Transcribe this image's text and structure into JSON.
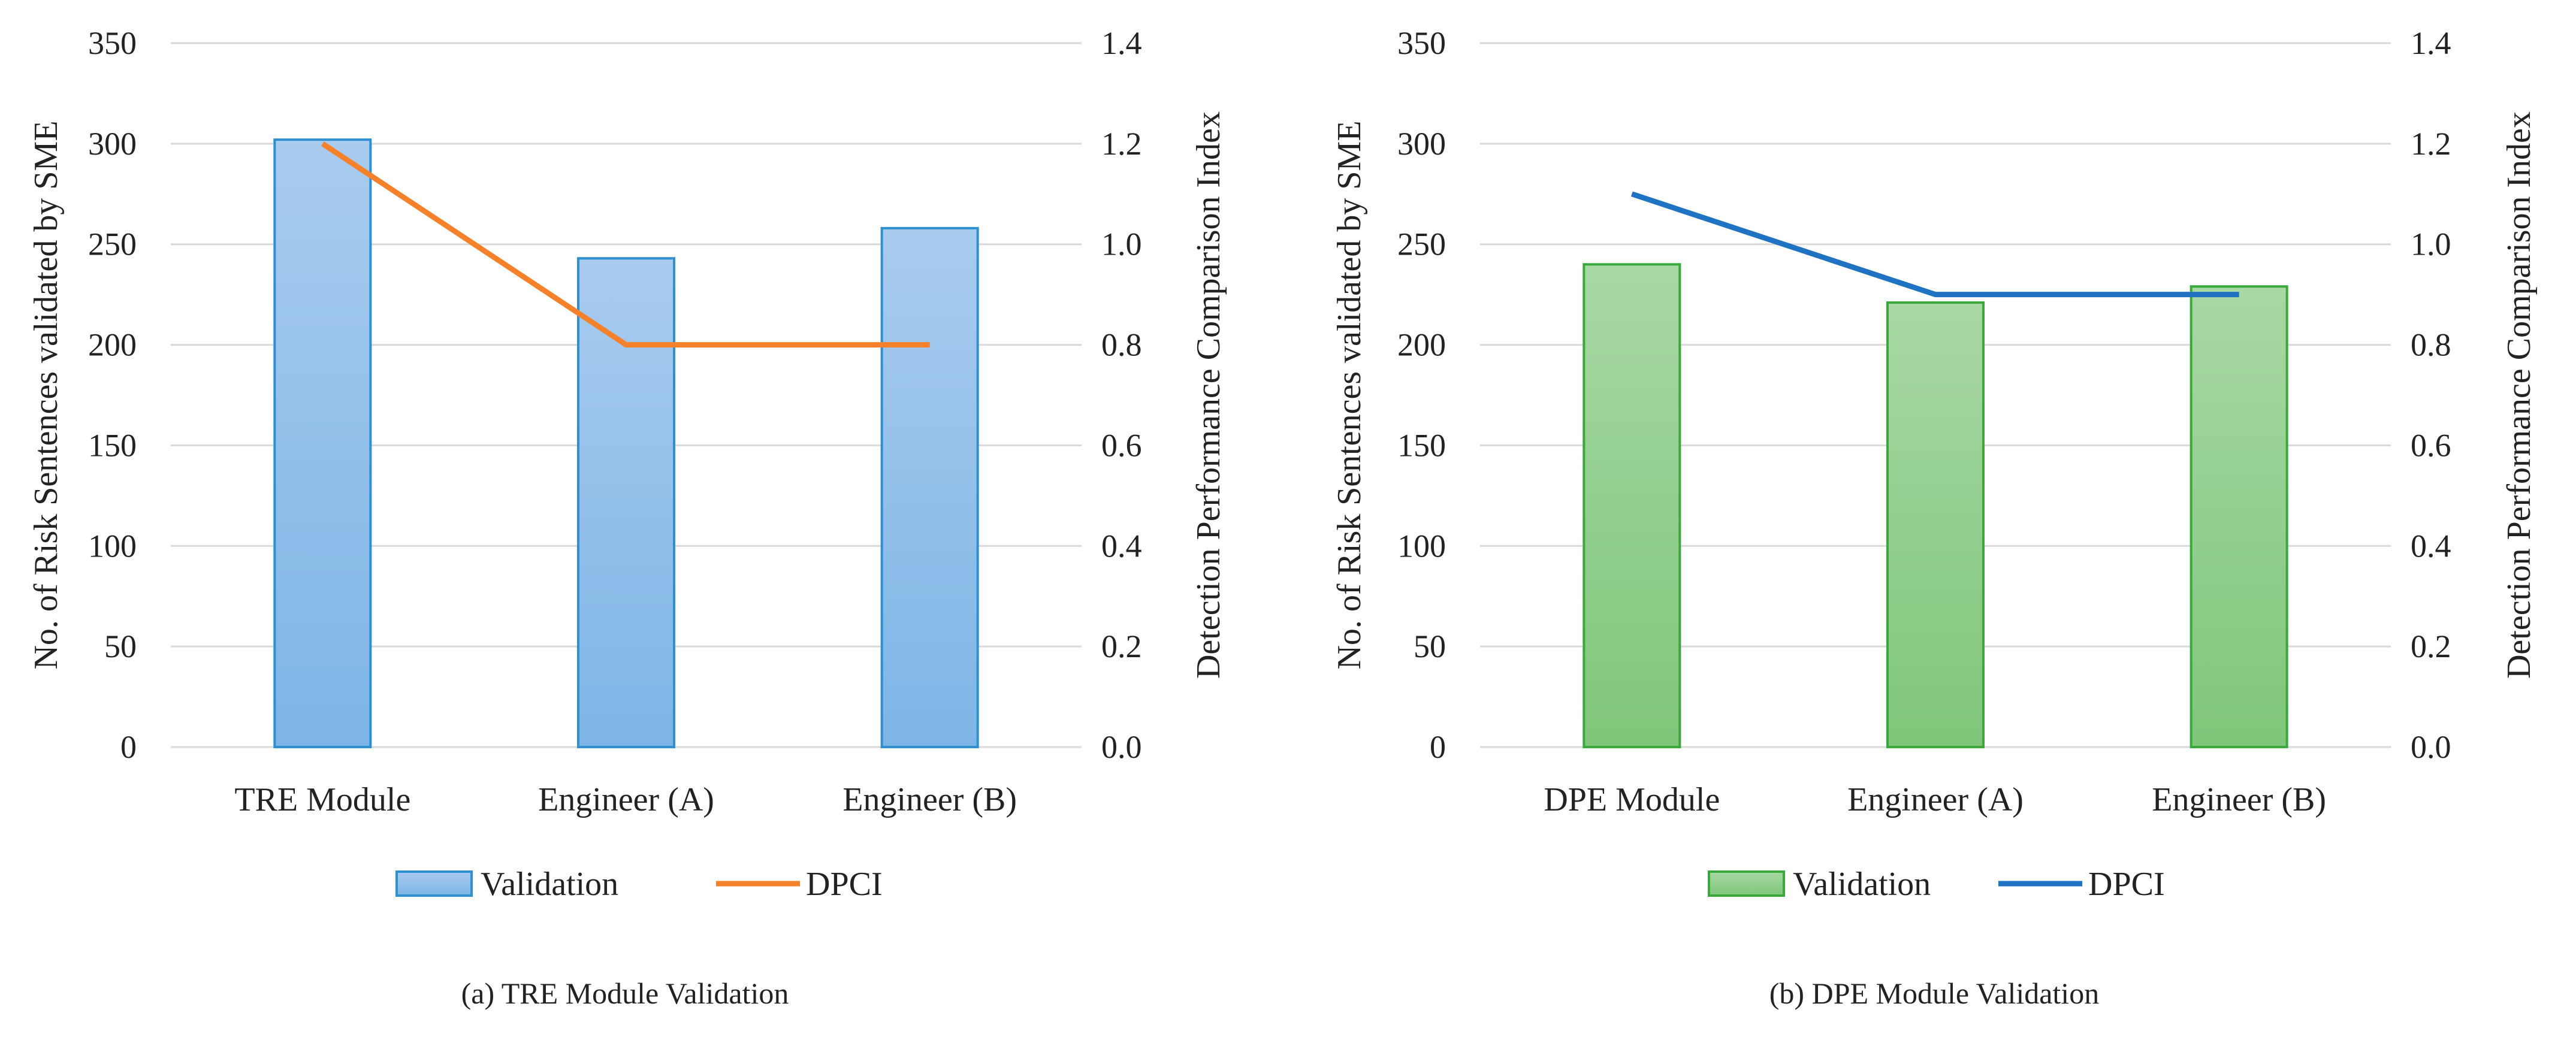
{
  "chart_data": [
    {
      "type": "bar",
      "caption": "(a) TRE Module Validation",
      "categories": [
        "TRE Module",
        "Engineer (A)",
        "Engineer (B)"
      ],
      "series": [
        {
          "name": "Validation",
          "type": "bar",
          "axis": "left",
          "values": [
            302,
            243,
            258
          ]
        },
        {
          "name": "DPCI",
          "type": "line",
          "axis": "right",
          "values": [
            1.2,
            0.8,
            0.8
          ]
        }
      ],
      "ylabel": "No. of Risk Sentences validated by SME",
      "y2label": "Detection Performance Comparison Index",
      "ylim": [
        0,
        350
      ],
      "y2lim": [
        0,
        1.4
      ],
      "yticks": [
        "0",
        "50",
        "100",
        "150",
        "200",
        "250",
        "300",
        "350"
      ],
      "y2ticks": [
        "0.0",
        "0.2",
        "0.4",
        "0.6",
        "0.8",
        "1.0",
        "1.2",
        "1.4"
      ],
      "grid": true,
      "legend": "bottom",
      "colors": {
        "bar_top": "#a9cbee",
        "bar_bottom": "#7db5e6",
        "bar_edge": "#2e8fd1",
        "line": "#f5822a"
      }
    },
    {
      "type": "bar",
      "caption": "(b) DPE Module Validation",
      "categories": [
        "DPE Module",
        "Engineer (A)",
        "Engineer (B)"
      ],
      "series": [
        {
          "name": "Validation",
          "type": "bar",
          "axis": "left",
          "values": [
            240,
            221,
            229
          ]
        },
        {
          "name": "DPCI",
          "type": "line",
          "axis": "right",
          "values": [
            1.1,
            0.9,
            0.9
          ]
        }
      ],
      "ylabel": "No. of Risk Sentences validated by SME",
      "y2label": "Detection Performance Comparison Index",
      "ylim": [
        0,
        350
      ],
      "y2lim": [
        0,
        1.4
      ],
      "yticks": [
        "0",
        "50",
        "100",
        "150",
        "200",
        "250",
        "300",
        "350"
      ],
      "y2ticks": [
        "0.0",
        "0.2",
        "0.4",
        "0.6",
        "0.8",
        "1.0",
        "1.2",
        "1.4"
      ],
      "grid": true,
      "legend": "bottom",
      "colors": {
        "bar_top": "#a8d8a4",
        "bar_bottom": "#7fc67a",
        "bar_edge": "#3aa83a",
        "line": "#1f73c2"
      }
    }
  ]
}
